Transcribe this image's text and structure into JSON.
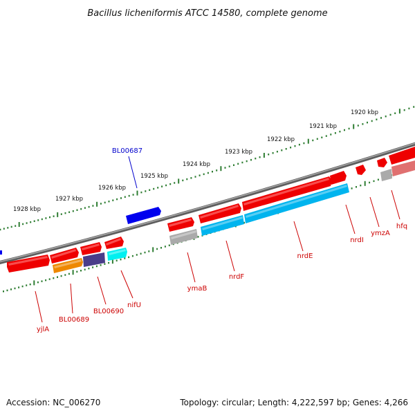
{
  "title": "Bacillus licheniformis ATCC 14580, complete genome",
  "footer": {
    "accession": "Accession: NC_006270",
    "topology": "Topology: circular; Length: 4,222,597 bp; Genes: 4,266"
  },
  "colors": {
    "backbone": "#777777",
    "tick_green": "#2e7d32",
    "gene_red": "#ee0000",
    "cds_blue": "#00b4ee",
    "rrna_gray": "#aaaaaa",
    "orange": "#ee8800",
    "purple": "#4a3d8a",
    "cyan": "#00f0f0",
    "dark_blue": "#0000ee",
    "pink": "#e07070",
    "label_red": "#cc0000",
    "label_blue": "#0000cc"
  },
  "scale": {
    "kbp_labels": [
      "1920 kbp",
      "1921 kbp",
      "1922 kbp",
      "1923 kbp",
      "1924 kbp",
      "1925 kbp",
      "1926 kbp",
      "1927 kbp",
      "1928 kbp"
    ]
  },
  "genes": [
    {
      "name": "yjlA",
      "color": "red"
    },
    {
      "name": "BL00689",
      "color": "orange"
    },
    {
      "name": "BL00690",
      "color": "purple"
    },
    {
      "name": "nifU",
      "color": "cyan"
    },
    {
      "name": "BL00687",
      "color": "dark_blue"
    },
    {
      "name": "ymaB",
      "color": "rrna_gray"
    },
    {
      "name": "nrdF",
      "color": "cds_blue"
    },
    {
      "name": "nrdE",
      "color": "cds_blue"
    },
    {
      "name": "nrdI",
      "color": "red"
    },
    {
      "name": "ymzA",
      "color": "rrna_gray"
    },
    {
      "name": "hfq",
      "color": "pink"
    }
  ]
}
